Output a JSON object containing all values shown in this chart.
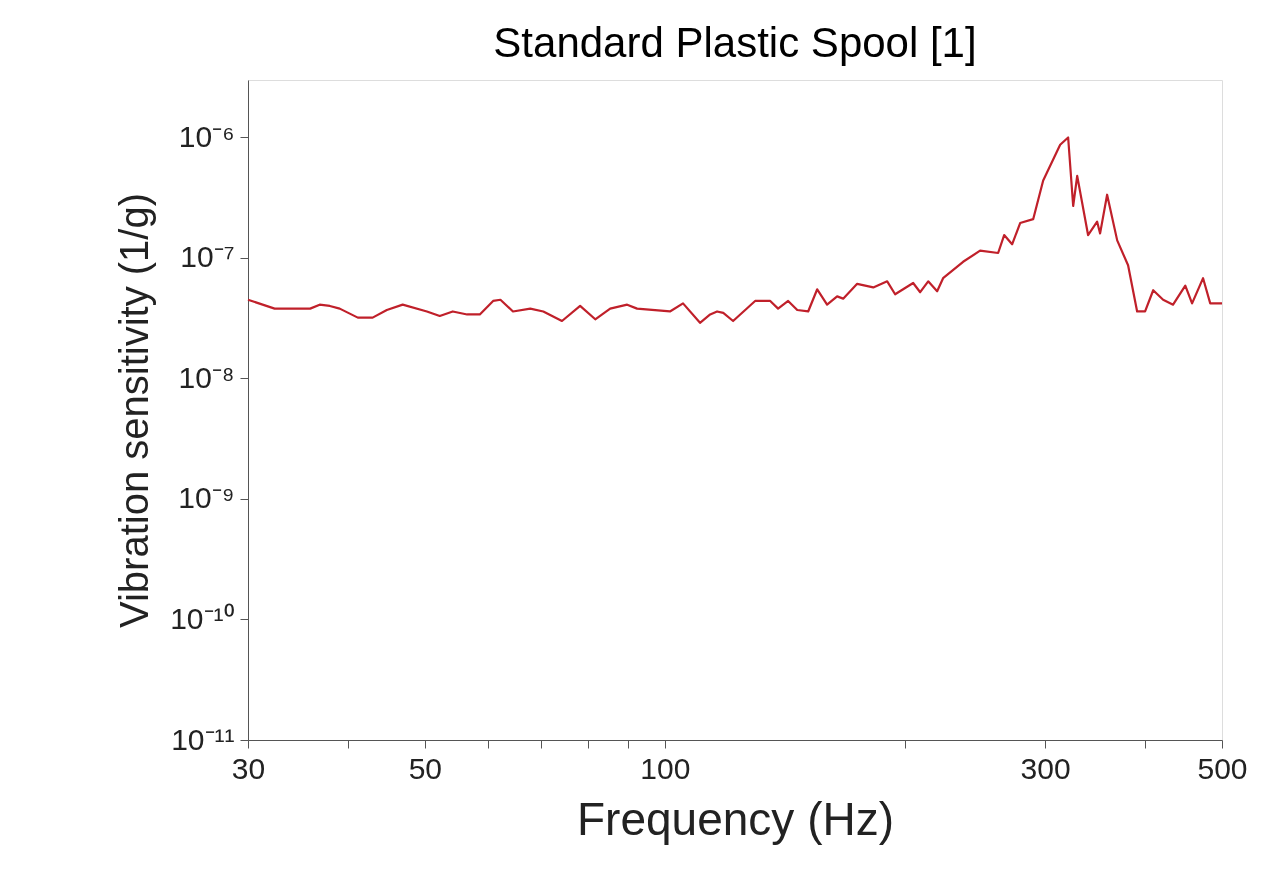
{
  "chart_data": {
    "type": "line",
    "title": "Standard Plastic Spool [1]",
    "xlabel": "Frequency (Hz)",
    "ylabel": "Vibration sensitivity (1/g)",
    "x": [
      30,
      32.4,
      35.9,
      36.9,
      38.0,
      39.1,
      41.2,
      43.0,
      44.8,
      46.9,
      50.3,
      52.2,
      54.2,
      56.5,
      58.6,
      60.9,
      62.2,
      64.5,
      67.8,
      70.4,
      74.3,
      78.3,
      81.8,
      85.4,
      89.7,
      92.3,
      101.5,
      105.4,
      110.7,
      114,
      116.3,
      118.4,
      121.8,
      129.8,
      135.6,
      138.7,
      142.8,
      146.6,
      151.3,
      155.3,
      159.8,
      164.5,
      167.4,
      174.3,
      182.6,
      190.1,
      194.5,
      204.9,
      209.1,
      214,
      219.6,
      223.4,
      236.7,
      248.6,
      261.9,
      266.5,
      272.7,
      279.1,
      289.8,
      298.3,
      313.3,
      320.6,
      325.3,
      329.1,
      339.6,
      348.6,
      351.6,
      358.8,
      369.4,
      381.2,
      391.3,
      400.4,
      409.9,
      421.8,
      434.1,
      449.7,
      458.6,
      473.4,
      483.3,
      500
    ],
    "series": [
      {
        "color": "#c0202a",
        "values": [
          4.5e-08,
          3.8e-08,
          3.8e-08,
          4.1e-08,
          4e-08,
          3.8e-08,
          3.2e-08,
          3.2e-08,
          3.7e-08,
          4.1e-08,
          3.6e-08,
          3.3e-08,
          3.6e-08,
          3.4e-08,
          3.4e-08,
          4.4e-08,
          4.5e-08,
          3.6e-08,
          3.8e-08,
          3.6e-08,
          3e-08,
          4e-08,
          3.1e-08,
          3.8e-08,
          4.1e-08,
          3.8e-08,
          3.6e-08,
          4.2e-08,
          2.9e-08,
          3.4e-08,
          3.6e-08,
          3.5e-08,
          3e-08,
          4.4e-08,
          4.4e-08,
          3.8e-08,
          4.4e-08,
          3.7e-08,
          3.6e-08,
          5.5e-08,
          4.1e-08,
          4.8e-08,
          4.6e-08,
          6.1e-08,
          5.7e-08,
          6.4e-08,
          5e-08,
          6.2e-08,
          5.2e-08,
          6.4e-08,
          5.3e-08,
          6.8e-08,
          9.3e-08,
          1.15e-07,
          1.1e-07,
          1.55e-07,
          1.3e-07,
          1.95e-07,
          2.1e-07,
          4.4e-07,
          8.7e-07,
          1e-06,
          2.7e-07,
          4.8e-07,
          1.55e-07,
          2e-07,
          1.6e-07,
          3.35e-07,
          1.4e-07,
          8.7e-08,
          3.6e-08,
          3.6e-08,
          5.4e-08,
          4.5e-08,
          4.1e-08,
          5.9e-08,
          4.2e-08,
          6.8e-08,
          4.2e-08,
          4.2e-08
        ]
      }
    ],
    "log": "xy",
    "xlim": [
      30,
      500
    ],
    "ylim": [
      1e-11,
      3e-06
    ],
    "xticks": [
      30,
      {
        "value": 40,
        "label": null
      },
      50,
      {
        "value": 60,
        "label": null
      },
      {
        "value": 70,
        "label": null
      },
      {
        "value": 80,
        "label": null
      },
      {
        "value": 90,
        "label": null
      },
      100,
      {
        "value": 200,
        "label": null
      },
      300,
      {
        "value": 400,
        "label": null
      },
      500
    ],
    "yticks": [
      {
        "value": 1e-11,
        "label": "10⁻¹¹"
      },
      {
        "value": 1e-10,
        "label": "10⁻¹⁰"
      },
      {
        "value": 1e-09,
        "label": "10⁻⁹"
      },
      {
        "value": 1e-08,
        "label": "10⁻⁸"
      },
      {
        "value": 1e-07,
        "label": "10⁻⁷"
      },
      {
        "value": 1e-06,
        "label": "10⁻⁶"
      }
    ],
    "grid": false,
    "marker": "none",
    "line_style": "solid"
  }
}
